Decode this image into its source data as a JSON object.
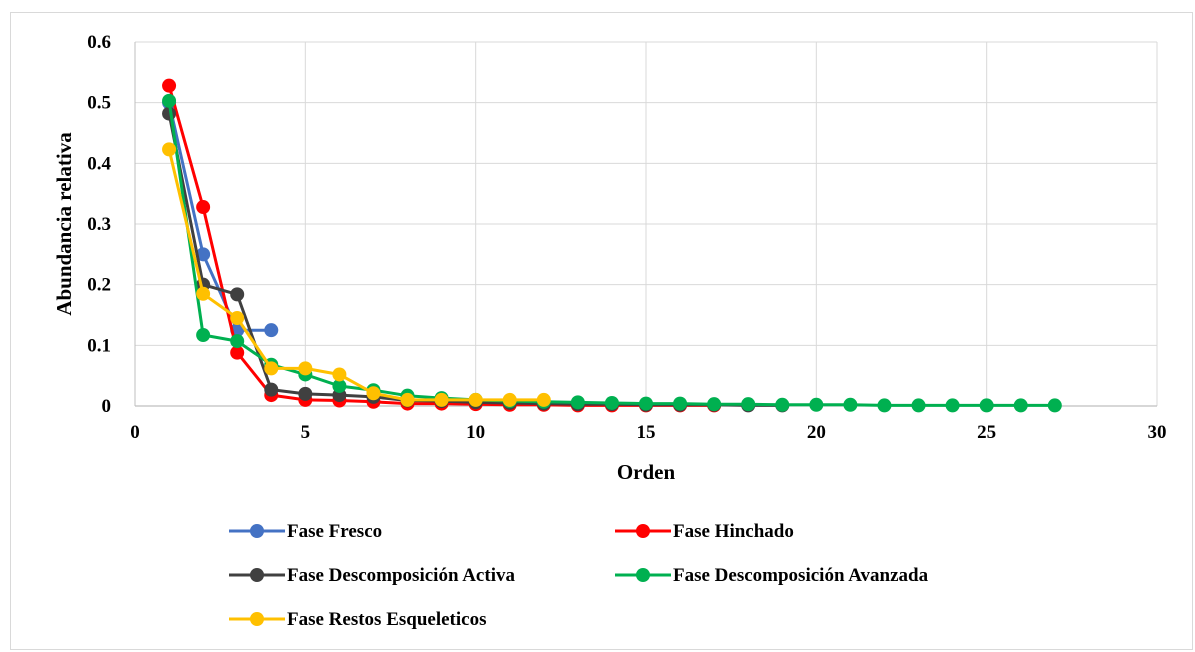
{
  "chart_data": {
    "type": "line",
    "title": "",
    "xlabel": "Orden",
    "ylabel": "Abundancia relativa",
    "xlim": [
      0,
      30
    ],
    "ylim": [
      0,
      0.6
    ],
    "xticks": [
      0,
      5,
      10,
      15,
      20,
      25,
      30
    ],
    "yticks": [
      0,
      0.1,
      0.2,
      0.3,
      0.4,
      0.5,
      0.6
    ],
    "xtick_labels": [
      "0",
      "5",
      "10",
      "15",
      "20",
      "25",
      "30"
    ],
    "ytick_labels": [
      "0",
      "0.1",
      "0.2",
      "0.3",
      "0.4",
      "0.5",
      "0.6"
    ],
    "grid": true,
    "legend_position": "bottom",
    "series": [
      {
        "name": "Fase Fresco",
        "color": "#4472c4",
        "x": [
          1,
          2,
          3,
          4
        ],
        "y": [
          0.5,
          0.25,
          0.125,
          0.125
        ]
      },
      {
        "name": "Fase Hinchado",
        "color": "#ff0000",
        "x": [
          1,
          2,
          3,
          4,
          5,
          6,
          7,
          8,
          9,
          10,
          11,
          12,
          13,
          14,
          15,
          16,
          17
        ],
        "y": [
          0.528,
          0.328,
          0.088,
          0.018,
          0.01,
          0.009,
          0.007,
          0.004,
          0.004,
          0.003,
          0.002,
          0.002,
          0.001,
          0.001,
          0.001,
          0.001,
          0.001
        ]
      },
      {
        "name": "Fase Descomposición Activa",
        "color": "#404040",
        "x": [
          1,
          2,
          3,
          4,
          5,
          6,
          7,
          8,
          9,
          10,
          11,
          12,
          13,
          14,
          15,
          16,
          17,
          18,
          19
        ],
        "y": [
          0.482,
          0.2,
          0.184,
          0.027,
          0.02,
          0.018,
          0.015,
          0.009,
          0.008,
          0.006,
          0.005,
          0.004,
          0.003,
          0.003,
          0.002,
          0.002,
          0.002,
          0.001,
          0.001
        ]
      },
      {
        "name": "Fase Descomposición Avanzada",
        "color": "#00b050",
        "x": [
          1,
          2,
          3,
          4,
          5,
          6,
          7,
          8,
          9,
          10,
          11,
          12,
          13,
          14,
          15,
          16,
          17,
          18,
          19,
          20,
          21,
          22,
          23,
          24,
          25,
          26,
          27
        ],
        "y": [
          0.503,
          0.117,
          0.107,
          0.068,
          0.052,
          0.033,
          0.026,
          0.017,
          0.013,
          0.01,
          0.008,
          0.007,
          0.006,
          0.005,
          0.004,
          0.004,
          0.003,
          0.003,
          0.002,
          0.002,
          0.002,
          0.001,
          0.001,
          0.001,
          0.001,
          0.001,
          0.001
        ]
      },
      {
        "name": "Fase Restos Esqueleticos",
        "color": "#ffc000",
        "x": [
          1,
          2,
          3,
          4,
          5,
          6,
          7,
          8,
          9,
          10,
          11,
          12
        ],
        "y": [
          0.423,
          0.185,
          0.145,
          0.062,
          0.062,
          0.052,
          0.021,
          0.01,
          0.01,
          0.01,
          0.01,
          0.01
        ]
      }
    ]
  }
}
